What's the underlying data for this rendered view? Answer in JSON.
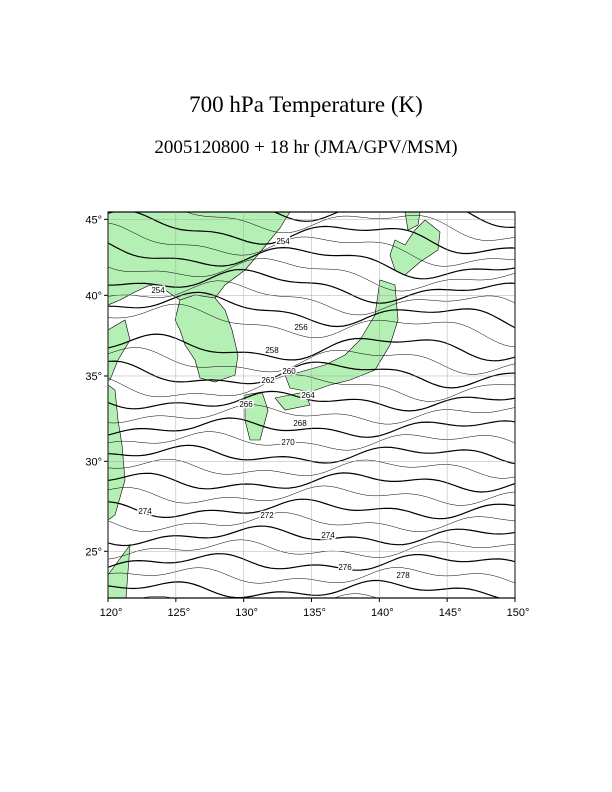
{
  "header": {
    "title": "700 hPa Temperature (K)",
    "subtitle": "2005120800 + 18 hr (JMA/GPV/MSM)"
  },
  "map": {
    "xlim": [
      120,
      150
    ],
    "ylim": [
      22.5,
      45.5
    ],
    "xticks": [
      {
        "value": 120,
        "label": "120°"
      },
      {
        "value": 125,
        "label": "125°"
      },
      {
        "value": 130,
        "label": "130°"
      },
      {
        "value": 135,
        "label": "135°"
      },
      {
        "value": 140,
        "label": "140°"
      },
      {
        "value": 145,
        "label": "145°"
      },
      {
        "value": 150,
        "label": "150°"
      }
    ],
    "yticks": [
      {
        "value": 25,
        "label": "25°"
      },
      {
        "value": 30,
        "label": "30°"
      },
      {
        "value": 35,
        "label": "35°"
      },
      {
        "value": 40,
        "label": "40°"
      },
      {
        "value": 45,
        "label": "45°"
      }
    ],
    "grid": true,
    "contour_labels": [
      254,
      254,
      256,
      258,
      260,
      262,
      264,
      266,
      268,
      270,
      272,
      274,
      274,
      276,
      278
    ]
  }
}
